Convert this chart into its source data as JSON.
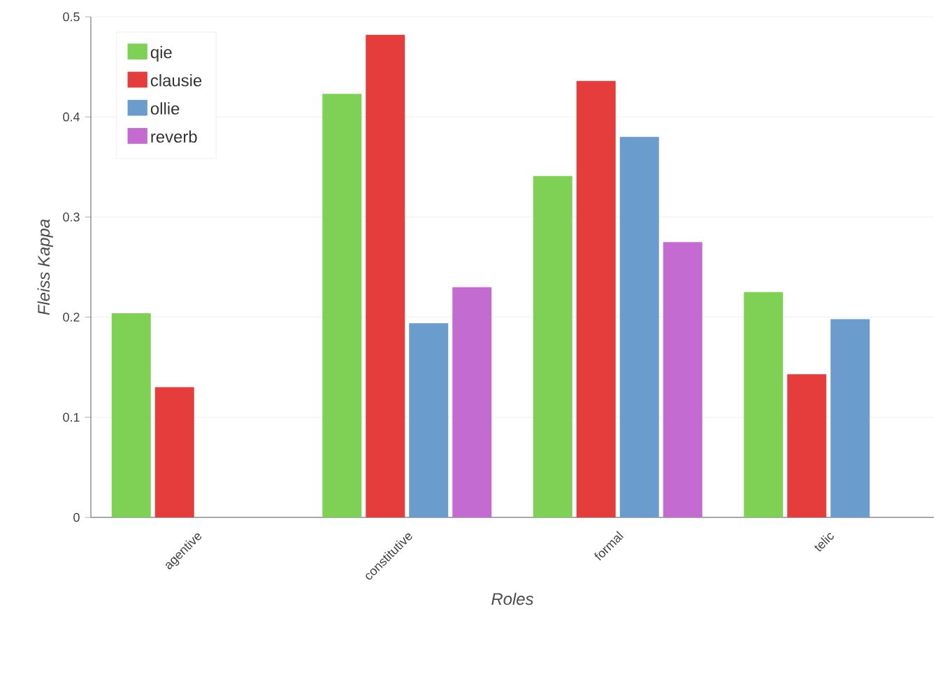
{
  "chart_data": {
    "type": "bar",
    "xlabel": "Roles",
    "ylabel": "Fleiss Kappa",
    "categories": [
      "agentive",
      "constitutive",
      "formal",
      "telic"
    ],
    "series": [
      {
        "name": "qie",
        "color": "#7ed155",
        "values": [
          0.204,
          0.423,
          0.341,
          0.225
        ]
      },
      {
        "name": "clausie",
        "color": "#e53c3c",
        "values": [
          0.13,
          0.482,
          0.436,
          0.143
        ]
      },
      {
        "name": "ollie",
        "color": "#6a9ccd",
        "values": [
          null,
          0.194,
          0.38,
          0.198
        ]
      },
      {
        "name": "reverb",
        "color": "#c46bd1",
        "values": [
          null,
          0.23,
          0.275,
          null
        ]
      }
    ],
    "ylim": [
      0,
      0.5
    ],
    "yticks": [
      0,
      0.1,
      0.2,
      0.3,
      0.4,
      0.5
    ],
    "grid": "y",
    "legend": "top left"
  }
}
